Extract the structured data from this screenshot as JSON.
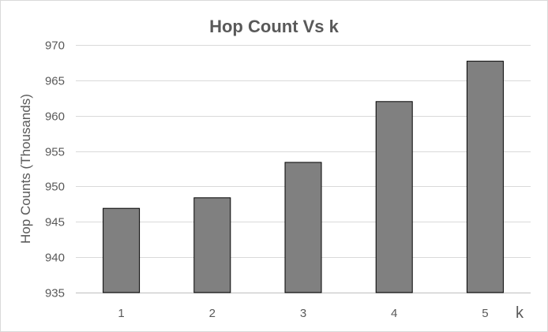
{
  "chart_data": {
    "type": "bar",
    "title": "Hop Count Vs k",
    "xlabel": "k",
    "ylabel": "Hop Counts (Thousands)",
    "categories": [
      "1",
      "2",
      "3",
      "4",
      "5"
    ],
    "values": [
      946.9,
      948.4,
      953.4,
      962.0,
      967.7
    ],
    "ylim": [
      935,
      970
    ],
    "yticks": [
      935,
      940,
      945,
      950,
      955,
      960,
      965,
      970
    ],
    "grid": true,
    "legend": "none",
    "colors": {
      "bar_fill": "#808080",
      "bar_stroke": "#000000",
      "text": "#595959",
      "grid": "#d9d9d9"
    }
  }
}
